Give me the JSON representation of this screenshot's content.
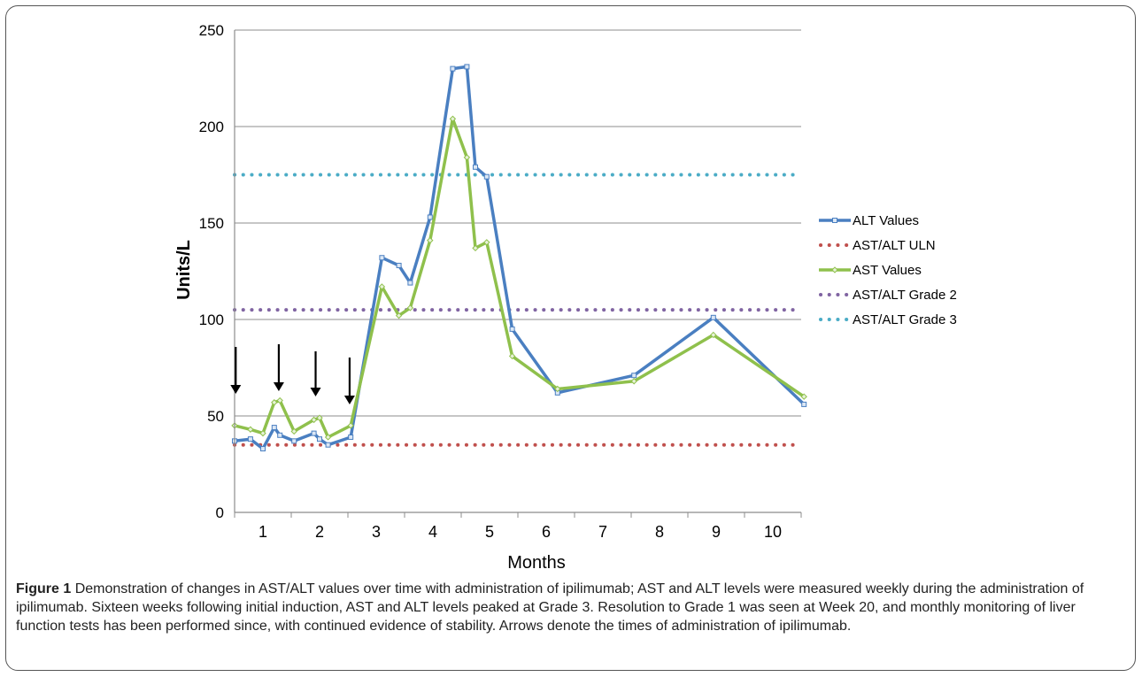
{
  "caption": {
    "label": "Figure 1",
    "text": "Demonstration of changes in AST/ALT values over time with administration of ipilimumab; AST and ALT levels were measured weekly during the administration of ipilimumab. Sixteen weeks following initial induction, AST and ALT levels peaked at Grade 3. Resolution to Grade 1 was seen at Week 20, and monthly monitoring of liver function tests has been performed since, with continued evidence of stability. Arrows denote the times of administration of ipilimumab."
  },
  "chart_data": {
    "type": "line",
    "xlabel": "Months",
    "ylabel": "Units/L",
    "ylim": [
      0,
      250
    ],
    "yticks": [
      0,
      50,
      100,
      150,
      200,
      250
    ],
    "xlim": [
      0.5,
      10.5
    ],
    "month_labels": [
      "1",
      "2",
      "3",
      "4",
      "5",
      "6",
      "7",
      "8",
      "9",
      "10"
    ],
    "grid": true,
    "legend": "right",
    "series": [
      {
        "name": "ALT Values",
        "style": "line",
        "color": "#4a7fc1",
        "points": [
          [
            0.5,
            37
          ],
          [
            0.78,
            38
          ],
          [
            1.0,
            33
          ],
          [
            1.2,
            44
          ],
          [
            1.3,
            40
          ],
          [
            1.55,
            37
          ],
          [
            1.9,
            41
          ],
          [
            2.0,
            38
          ],
          [
            2.15,
            35
          ],
          [
            2.55,
            39
          ],
          [
            3.1,
            132
          ],
          [
            3.4,
            128
          ],
          [
            3.6,
            119
          ],
          [
            3.95,
            153
          ],
          [
            4.35,
            230
          ],
          [
            4.6,
            231
          ],
          [
            4.75,
            179
          ],
          [
            4.95,
            174
          ],
          [
            5.4,
            95
          ],
          [
            6.2,
            62
          ],
          [
            7.55,
            71
          ],
          [
            8.95,
            101
          ],
          [
            10.55,
            56
          ]
        ]
      },
      {
        "name": "AST/ALT ULN",
        "style": "dotted",
        "color": "#c0504d",
        "value": 35
      },
      {
        "name": "AST Values",
        "style": "line",
        "color": "#8fc04c",
        "points": [
          [
            0.5,
            45
          ],
          [
            0.78,
            43
          ],
          [
            1.0,
            41
          ],
          [
            1.2,
            57
          ],
          [
            1.3,
            58
          ],
          [
            1.55,
            42
          ],
          [
            1.9,
            48
          ],
          [
            2.0,
            49
          ],
          [
            2.15,
            39
          ],
          [
            2.55,
            45
          ],
          [
            3.1,
            117
          ],
          [
            3.4,
            102
          ],
          [
            3.6,
            106
          ],
          [
            3.95,
            141
          ],
          [
            4.35,
            204
          ],
          [
            4.6,
            184
          ],
          [
            4.75,
            137
          ],
          [
            4.95,
            140
          ],
          [
            5.4,
            81
          ],
          [
            6.2,
            64
          ],
          [
            7.55,
            68
          ],
          [
            8.95,
            92
          ],
          [
            10.55,
            60
          ]
        ]
      },
      {
        "name": "AST/ALT Grade 2",
        "style": "dotted",
        "color": "#8064a2",
        "value": 105
      },
      {
        "name": "AST/ALT Grade 3",
        "style": "dotted",
        "color": "#4bacc6",
        "value": 175
      }
    ],
    "annotations": [
      {
        "type": "arrow",
        "x": 0.52,
        "description": "ipilimumab administration"
      },
      {
        "type": "arrow",
        "x": 1.28,
        "description": "ipilimumab administration"
      },
      {
        "type": "arrow",
        "x": 1.93,
        "description": "ipilimumab administration"
      },
      {
        "type": "arrow",
        "x": 2.53,
        "description": "ipilimumab administration"
      }
    ]
  }
}
